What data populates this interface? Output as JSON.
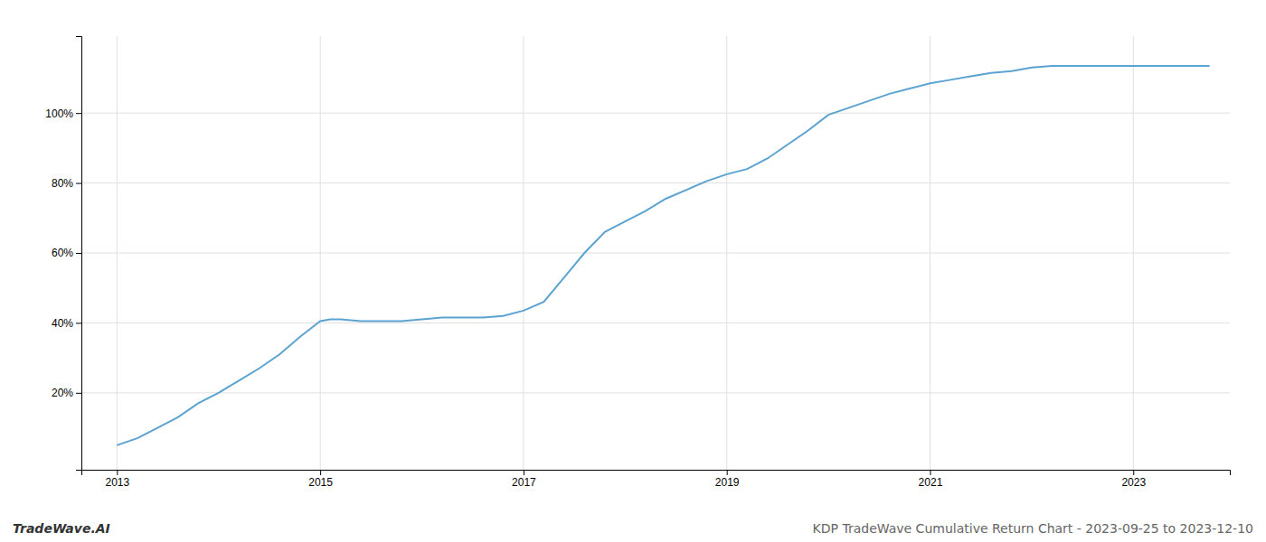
{
  "chart_data": {
    "type": "line",
    "x": [
      2013.0,
      2013.2,
      2013.4,
      2013.6,
      2013.8,
      2014.0,
      2014.2,
      2014.4,
      2014.6,
      2014.8,
      2015.0,
      2015.1,
      2015.2,
      2015.4,
      2015.6,
      2015.8,
      2016.0,
      2016.2,
      2016.4,
      2016.6,
      2016.8,
      2017.0,
      2017.2,
      2017.4,
      2017.6,
      2017.8,
      2018.0,
      2018.2,
      2018.4,
      2018.6,
      2018.8,
      2019.0,
      2019.2,
      2019.4,
      2019.6,
      2019.8,
      2020.0,
      2020.2,
      2020.4,
      2020.6,
      2020.8,
      2021.0,
      2021.2,
      2021.4,
      2021.6,
      2021.8,
      2022.0,
      2022.2,
      2022.4,
      2022.6,
      2022.8,
      2023.0,
      2023.2,
      2023.5,
      2023.75
    ],
    "values": [
      5.0,
      7.0,
      10.0,
      13.0,
      17.0,
      20.0,
      23.5,
      27.0,
      31.0,
      36.0,
      40.5,
      41.0,
      41.0,
      40.5,
      40.5,
      40.5,
      41.0,
      41.5,
      41.5,
      41.5,
      42.0,
      43.5,
      46.0,
      53.0,
      60.0,
      66.0,
      69.0,
      72.0,
      75.5,
      78.0,
      80.5,
      82.5,
      84.0,
      87.0,
      91.0,
      95.0,
      99.5,
      101.5,
      103.5,
      105.5,
      107.0,
      108.5,
      109.5,
      110.5,
      111.5,
      112.0,
      113.0,
      113.5,
      113.5,
      113.5,
      113.5,
      113.5,
      113.5,
      113.5,
      113.5
    ],
    "color": "#5ba3d0",
    "xlim": [
      2012.65,
      2023.95
    ],
    "xticks": [
      2013,
      2015,
      2017,
      2019,
      2021,
      2023
    ],
    "ylim": [
      -2,
      122
    ],
    "yticks": [
      {
        "value": 20,
        "label": "20%"
      },
      {
        "value": 40,
        "label": "40%"
      },
      {
        "value": 60,
        "label": "60%"
      },
      {
        "value": 80,
        "label": "80%"
      },
      {
        "value": 100,
        "label": "100%"
      }
    ],
    "grid": true,
    "annotations": [
      "TradeWave.AI",
      "KDP TradeWave Cumulative Return Chart - 2023-09-25 to 2023-12-10"
    ]
  }
}
